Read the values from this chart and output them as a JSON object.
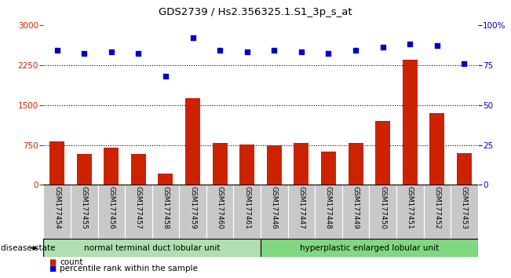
{
  "title": "GDS2739 / Hs2.356325.1.S1_3p_s_at",
  "samples": [
    "GSM177454",
    "GSM177455",
    "GSM177456",
    "GSM177457",
    "GSM177458",
    "GSM177459",
    "GSM177460",
    "GSM177461",
    "GSM177446",
    "GSM177447",
    "GSM177448",
    "GSM177449",
    "GSM177450",
    "GSM177451",
    "GSM177452",
    "GSM177453"
  ],
  "counts": [
    820,
    580,
    700,
    580,
    210,
    1620,
    790,
    760,
    750,
    790,
    630,
    790,
    1200,
    2350,
    1350,
    600
  ],
  "percentiles": [
    84,
    82,
    83,
    82,
    68,
    92,
    84,
    83,
    84,
    83,
    82,
    84,
    86,
    88,
    87,
    76
  ],
  "group1_label": "normal terminal duct lobular unit",
  "group2_label": "hyperplastic enlarged lobular unit",
  "group1_count": 8,
  "group2_count": 8,
  "bar_color": "#cc2200",
  "dot_color": "#0000cc",
  "group1_color": "#b0e0b0",
  "group2_color": "#80d880",
  "bg_color": "#c8c8c8",
  "ylim_left": [
    0,
    3000
  ],
  "ylim_right": [
    0,
    100
  ],
  "yticks_left": [
    0,
    750,
    1500,
    2250,
    3000
  ],
  "yticks_right": [
    0,
    25,
    50,
    75,
    100
  ],
  "legend_count_label": "count",
  "legend_pct_label": "percentile rank within the sample",
  "disease_state_label": "disease state"
}
